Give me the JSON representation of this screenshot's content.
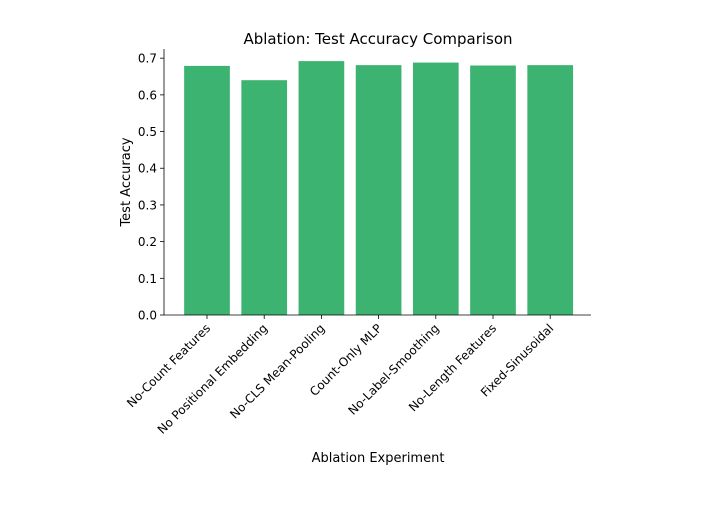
{
  "chart_data": {
    "type": "bar",
    "title": "Ablation: Test Accuracy Comparison",
    "xlabel": "Ablation Experiment",
    "ylabel": "Test Accuracy",
    "categories": [
      "No-Count Features",
      "No Positional Embedding",
      "No-CLS Mean-Pooling",
      "Count-Only MLP",
      "No-Label-Smoothing",
      "No-Length Features",
      "Fixed-Sinusoidal"
    ],
    "values": [
      0.679,
      0.64,
      0.692,
      0.681,
      0.688,
      0.68,
      0.681
    ],
    "ylim": [
      0,
      0.725
    ],
    "yticks": [
      0.0,
      0.1,
      0.2,
      0.3,
      0.4,
      0.5,
      0.6,
      0.7
    ],
    "ytick_labels": [
      "0.0",
      "0.1",
      "0.2",
      "0.3",
      "0.4",
      "0.5",
      "0.6",
      "0.7"
    ],
    "bar_color": "#3cb371",
    "grid": false,
    "legend": "none"
  }
}
